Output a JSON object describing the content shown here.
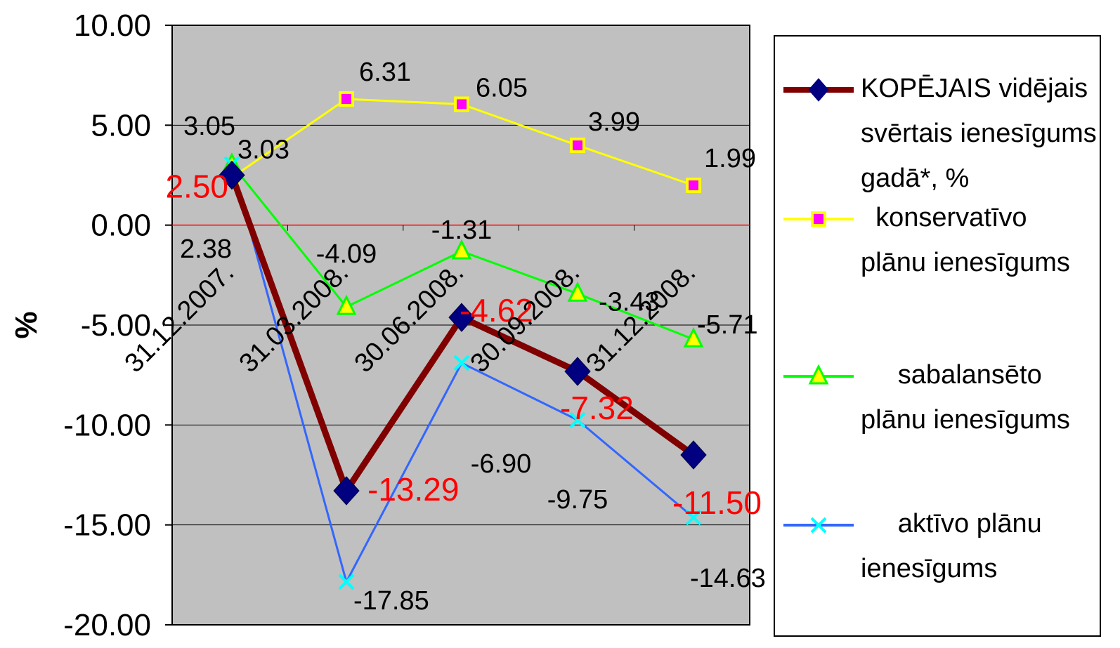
{
  "chart_data": {
    "type": "line",
    "categories": [
      "31.12.2007.",
      "31.03.2008.",
      "30.06.2008.",
      "30.09.2008.",
      "31.12.2008."
    ],
    "ylabel": "%",
    "ylim": [
      -20,
      10
    ],
    "yticks": [
      "10.00",
      "5.00",
      "0.00",
      "-5.00",
      "-10.00",
      "-15.00",
      "-20.00"
    ],
    "grid": true,
    "legend_position": "right",
    "series": [
      {
        "name": "KOPĒJAIS vidējais svērtais ienesīgums gadā*, %",
        "values": [
          2.5,
          -13.29,
          -4.62,
          -7.32,
          -11.5
        ],
        "labels": [
          "2.50",
          "-13.29",
          "-4.62",
          "-7.32",
          "-11.50"
        ],
        "color": "#800000",
        "marker": "diamond",
        "marker_color": "#000080"
      },
      {
        "name": "konservatīvo plānu ienesīgums",
        "values": [
          2.38,
          6.31,
          6.05,
          3.99,
          1.99
        ],
        "labels": [
          "2.38",
          "6.31",
          "6.05",
          "3.99",
          "1.99"
        ],
        "color": "#ffff00",
        "marker": "square",
        "marker_color": "#ff00ff"
      },
      {
        "name": "sabalansēto plānu ienesīgums",
        "values": [
          3.03,
          -4.09,
          -1.31,
          -3.43,
          -5.71
        ],
        "labels": [
          "3.03",
          "-4.09",
          "-1.31",
          "-3.43",
          "-5.71"
        ],
        "color": "#00ff00",
        "marker": "triangle",
        "marker_color": "#ffff00"
      },
      {
        "name": "aktīvo plānu ienesīgums",
        "values": [
          3.05,
          -17.85,
          -6.9,
          -9.75,
          -14.63
        ],
        "labels": [
          "3.05",
          "-17.85",
          "-6.90",
          "-9.75",
          "-14.63"
        ],
        "color": "#3366ff",
        "marker": "x",
        "marker_color": "#00ffff"
      }
    ]
  },
  "legend": {
    "items": [
      {
        "label": "KOPĒJAIS vidējais svērtais ienesīgums gadā*, %"
      },
      {
        "label": "  konservatīvo plānu ienesīgums"
      },
      {
        "label": "     sabalansēto plānu ienesīgums"
      },
      {
        "label": "     aktīvo plānu ienesīgums"
      }
    ]
  }
}
